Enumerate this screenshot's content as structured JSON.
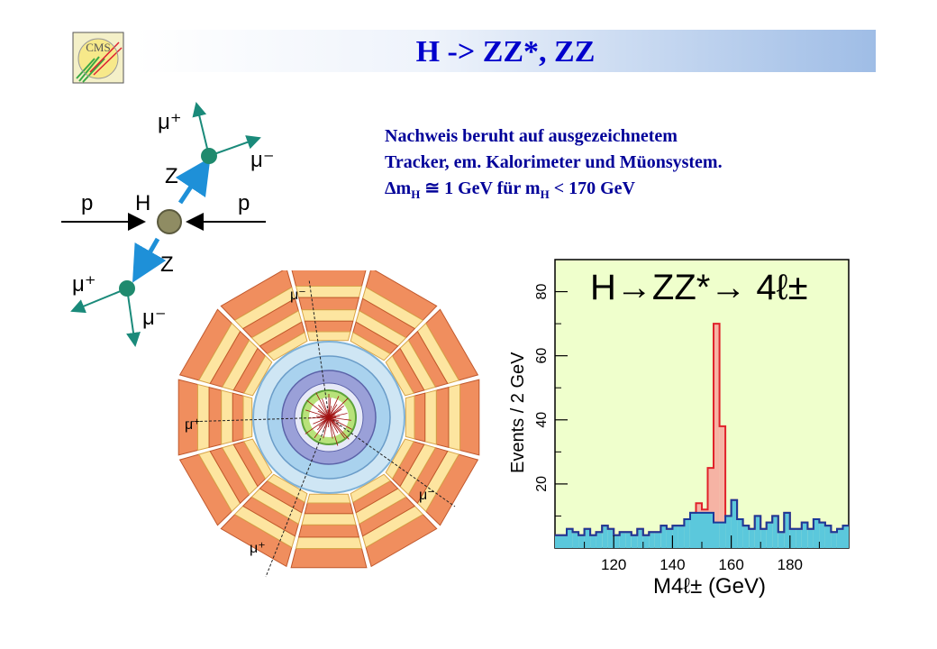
{
  "title": "H -> ZZ*, ZZ",
  "logo_text": "CMS",
  "text_lines": [
    "Nachweis beruht auf ausgezeichnetem",
    "Tracker, em. Kalorimeter und Müonsystem."
  ],
  "mass_line": {
    "delta": "Δm",
    "sub1": "H",
    "approx": " ≅ 1 GeV für m",
    "sub2": "H",
    "rest": " < 170 GeV"
  },
  "feynman": {
    "p_left": "p",
    "p_right": "p",
    "h": "H",
    "z_top": "Z",
    "z_bottom": "Z",
    "mu_plus_top": "μ⁺",
    "mu_minus_top": "μ⁻",
    "mu_plus_bottom": "μ⁺",
    "mu_minus_bottom": "μ⁻"
  },
  "detector_labels": [
    "μ⁻",
    "μ⁺",
    "μ⁻",
    "μ⁺"
  ],
  "chart_data": {
    "type": "histogram",
    "title": "H→ZZ*→ 4ℓ±",
    "xlabel": "M4ℓ± (GeV)",
    "ylabel": "Events / 2 GeV",
    "xlim": [
      100,
      200
    ],
    "ylim": [
      0,
      90
    ],
    "xticks": [
      120,
      140,
      160,
      180
    ],
    "yticks": [
      20,
      40,
      60,
      80
    ],
    "bin_width": 2,
    "background": {
      "name": "background",
      "color": "#5bc8dc",
      "values": [
        4,
        4,
        6,
        5,
        4,
        6,
        4,
        5,
        7,
        6,
        4,
        5,
        5,
        4,
        6,
        4,
        5,
        5,
        7,
        6,
        7,
        7,
        9,
        11,
        11,
        11,
        11,
        8,
        8,
        10,
        15,
        9,
        7,
        6,
        10,
        6,
        8,
        10,
        5,
        11,
        6,
        6,
        8,
        6,
        9,
        8,
        7,
        5,
        6,
        7
      ]
    },
    "signal": {
      "name": "signal",
      "color": "#f6b3a4",
      "values": [
        0,
        0,
        0,
        0,
        0,
        0,
        0,
        0,
        0,
        0,
        0,
        0,
        0,
        0,
        0,
        0,
        0,
        0,
        0,
        0,
        0,
        0,
        0,
        0,
        3,
        1,
        14,
        62,
        30,
        0,
        0,
        0,
        0,
        0,
        0,
        0,
        0,
        0,
        0,
        0,
        0,
        0,
        0,
        0,
        0,
        0,
        0,
        0,
        0,
        0
      ]
    }
  }
}
